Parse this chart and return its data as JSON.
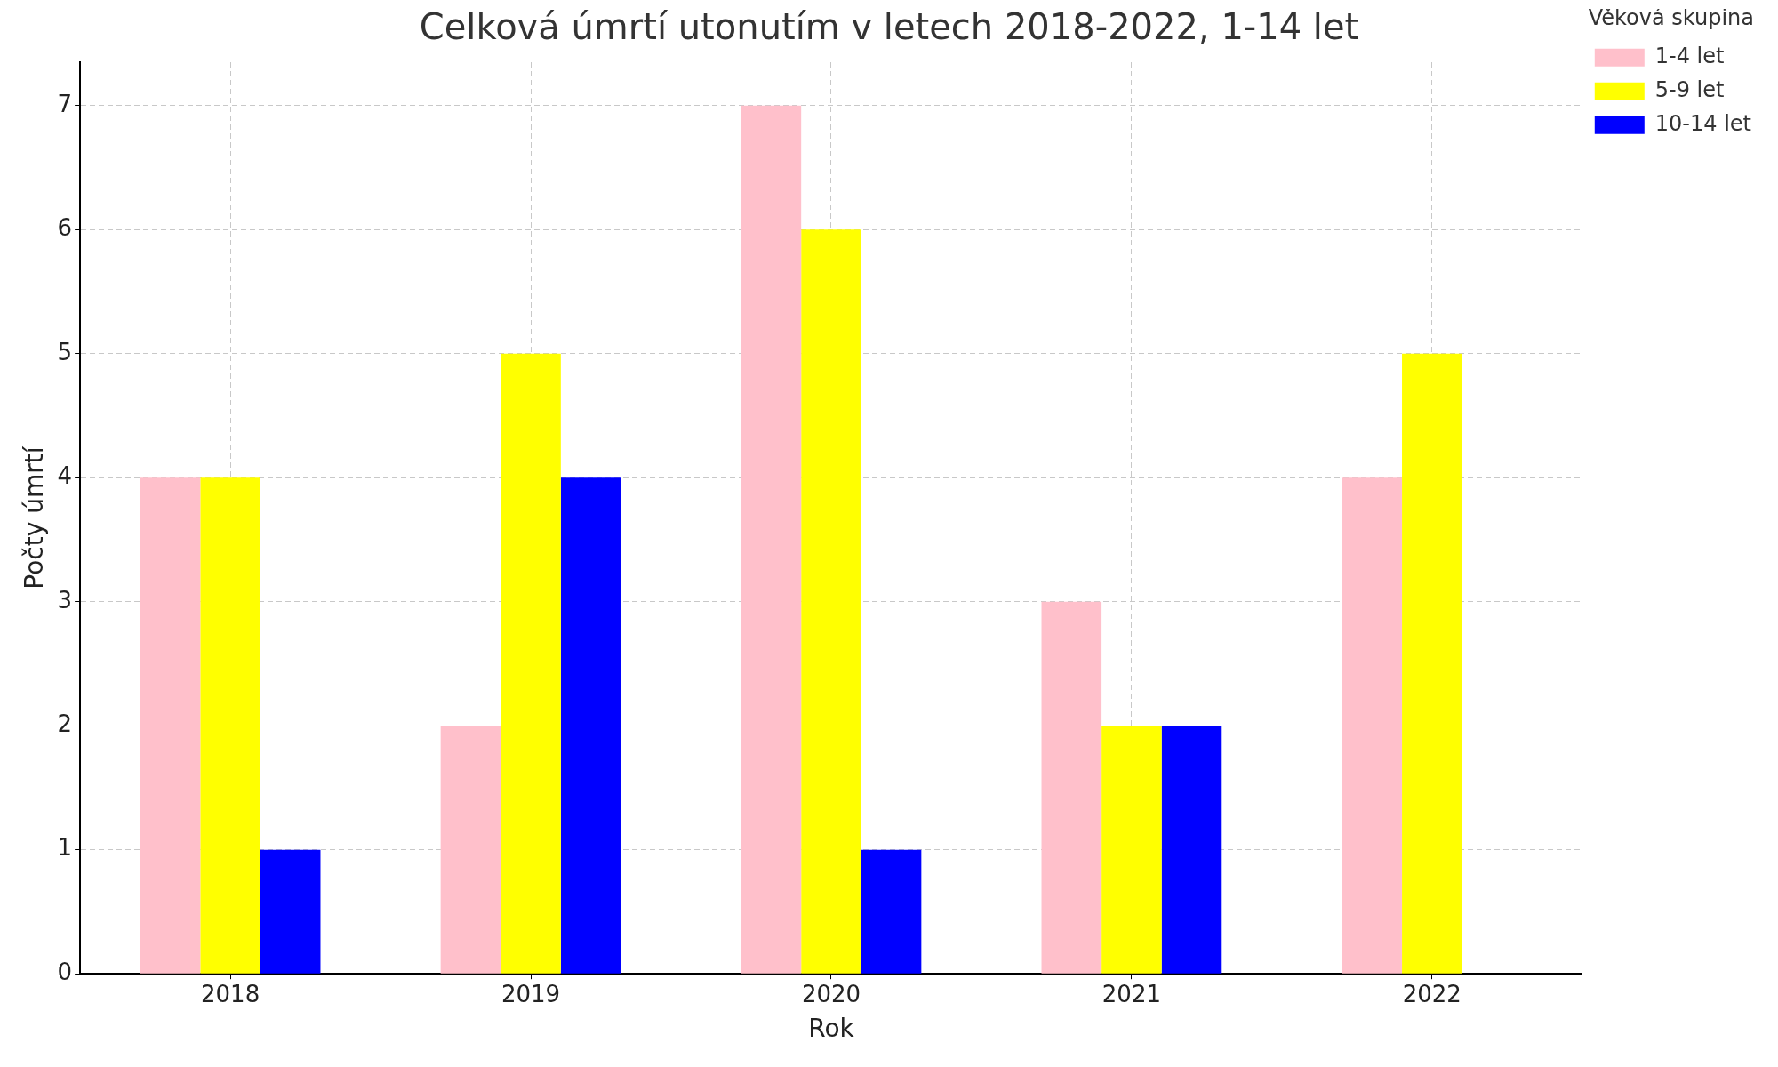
{
  "chart_data": {
    "type": "bar",
    "title": "Celková úmrtí utonutím v letech 2018-2022, 1-14 let",
    "xlabel": "Rok",
    "ylabel": "Počty úmrtí",
    "legend_title": "Věková skupina",
    "categories": [
      "2018",
      "2019",
      "2020",
      "2021",
      "2022"
    ],
    "series": [
      {
        "name": "1-4 let",
        "color": "#ffc0cb",
        "values": [
          4,
          2,
          7,
          3,
          4
        ]
      },
      {
        "name": "5-9 let",
        "color": "#ffff00",
        "values": [
          4,
          5,
          6,
          2,
          5
        ]
      },
      {
        "name": "10-14 let",
        "color": "#0000ff",
        "values": [
          1,
          4,
          1,
          2,
          0
        ]
      }
    ],
    "ylim": [
      0,
      7.35
    ],
    "yticks": [
      0,
      1,
      2,
      3,
      4,
      5,
      6,
      7
    ],
    "grid": true,
    "legend": "top right"
  }
}
